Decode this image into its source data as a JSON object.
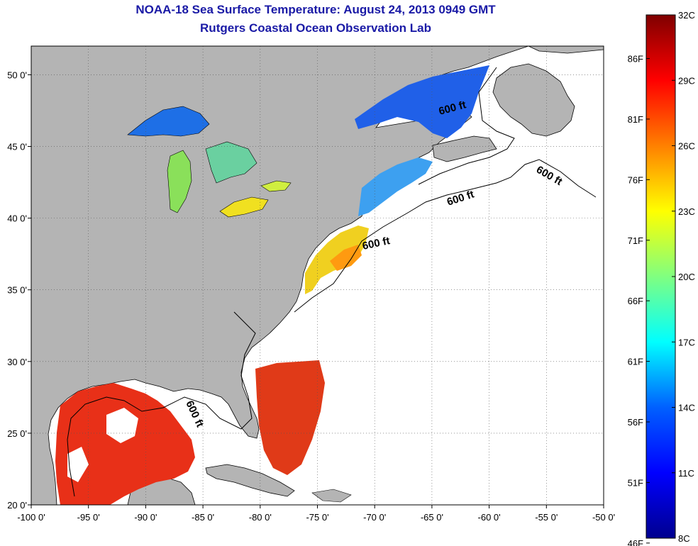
{
  "title": {
    "line1": "NOAA-18 Sea Surface Temperature:  August 24, 2013 0949 GMT",
    "line2": "Rutgers Coastal Ocean Observation Lab"
  },
  "map": {
    "lon_range": [
      -100,
      -50
    ],
    "lat_range": [
      20,
      52
    ],
    "lon_ticks": [
      "-100 0'",
      "-95 0'",
      "-90 0'",
      "-85 0'",
      "-80 0'",
      "-75 0'",
      "-70 0'",
      "-65 0'",
      "-60 0'",
      "-55 0'",
      "-50 0'"
    ],
    "lat_ticks": [
      "50 0'",
      "45 0'",
      "40 0'",
      "35 0'",
      "30 0'",
      "25 0'",
      "20 0'"
    ],
    "contour_label": "600 ft",
    "land_color": "#b4b4b4",
    "no_data_color": "#ffffff"
  },
  "colorbar": {
    "celsius": [
      "32C",
      "29C",
      "26C",
      "23C",
      "20C",
      "17C",
      "14C",
      "11C",
      "8C"
    ],
    "fahrenheit": [
      "86F",
      "81F",
      "76F",
      "71F",
      "66F",
      "61F",
      "56F",
      "51F",
      "46F"
    ],
    "range_c": [
      8,
      32
    ],
    "colors": [
      "#7f0000",
      "#ff0000",
      "#ff8000",
      "#ffff00",
      "#80ff80",
      "#00ffff",
      "#0080ff",
      "#0000ff",
      "#00008f"
    ]
  }
}
